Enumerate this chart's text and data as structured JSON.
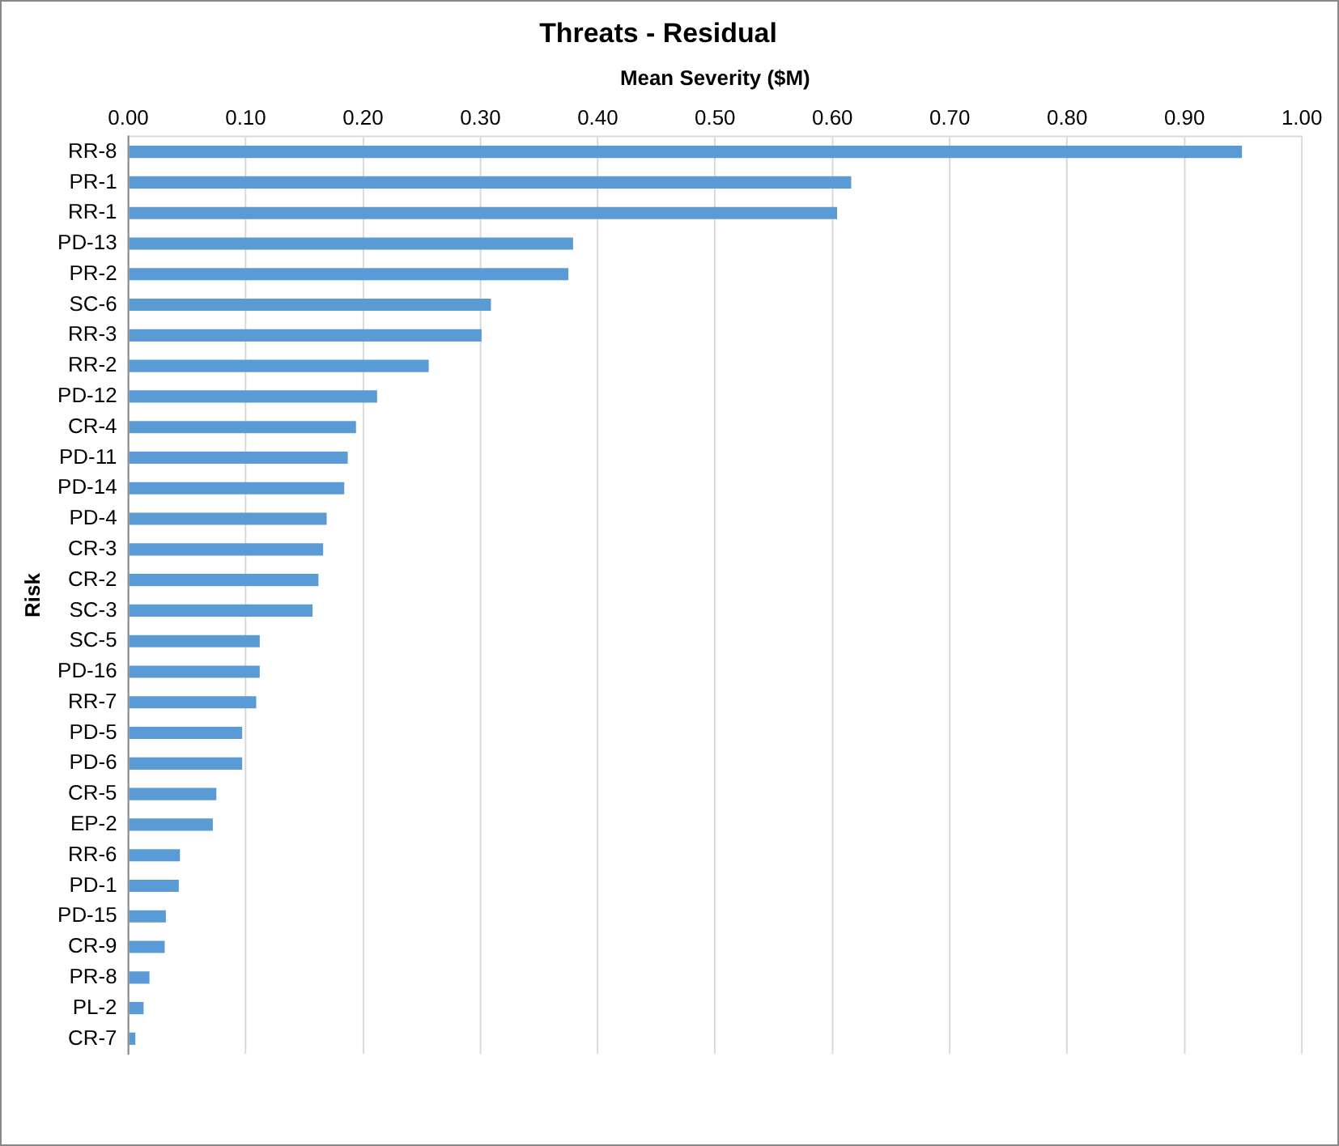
{
  "chart_data": {
    "type": "bar",
    "orientation": "horizontal",
    "title": "Threats - Residual",
    "xlabel": "Mean Severity ($M)",
    "ylabel": "Risk",
    "categories": [
      "RR-8",
      "PR-1",
      "RR-1",
      "PD-13",
      "PR-2",
      "SC-6",
      "RR-3",
      "RR-2",
      "PD-12",
      "CR-4",
      "PD-11",
      "PD-14",
      "PD-4",
      "CR-3",
      "CR-2",
      "SC-3",
      "SC-5",
      "PD-16",
      "RR-7",
      "PD-5",
      "PD-6",
      "CR-5",
      "EP-2",
      "RR-6",
      "PD-1",
      "PD-15",
      "CR-9",
      "PR-8",
      "PL-2",
      "CR-7"
    ],
    "values": [
      0.949,
      0.616,
      0.604,
      0.379,
      0.375,
      0.309,
      0.301,
      0.256,
      0.212,
      0.194,
      0.187,
      0.184,
      0.169,
      0.166,
      0.162,
      0.157,
      0.112,
      0.112,
      0.109,
      0.097,
      0.097,
      0.075,
      0.072,
      0.044,
      0.043,
      0.032,
      0.031,
      0.018,
      0.013,
      0.006
    ],
    "color": "#5b9bd5",
    "xlim": [
      0,
      1
    ],
    "xticks": [
      {
        "value": 0,
        "label": "0.00"
      },
      {
        "value": 0.1,
        "label": "0.10"
      },
      {
        "value": 0.2,
        "label": "0.20"
      },
      {
        "value": 0.3,
        "label": "0.30"
      },
      {
        "value": 0.4,
        "label": "0.40"
      },
      {
        "value": 0.5,
        "label": "0.50"
      },
      {
        "value": 0.6,
        "label": "0.60"
      },
      {
        "value": 0.7,
        "label": "0.70"
      },
      {
        "value": 0.8,
        "label": "0.80"
      },
      {
        "value": 0.9,
        "label": "0.90"
      },
      {
        "value": 1,
        "label": "1.00"
      }
    ],
    "grid": "x",
    "legend": false
  }
}
